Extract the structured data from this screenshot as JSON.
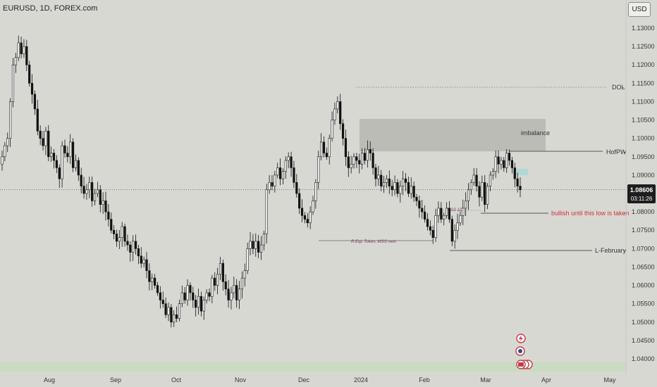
{
  "header": {
    "symbol_line": "EURUSD, 1D, FOREX.com",
    "currency": "USD"
  },
  "price_label": {
    "price": "1.08606",
    "countdown": "03:11:26"
  },
  "chart_data": {
    "type": "candlestick",
    "title": "EURUSD, 1D, FOREX.com",
    "y_ticks": [
      "1.13000",
      "1.12500",
      "1.12000",
      "1.11500",
      "1.11000",
      "1.10500",
      "1.10000",
      "1.09500",
      "1.09000",
      "1.08500",
      "1.08000",
      "1.07500",
      "1.07000",
      "1.06500",
      "1.06000",
      "1.05500",
      "1.05000",
      "1.04500",
      "1.04000"
    ],
    "ylim": [
      1.0375,
      1.1345
    ],
    "x_ticks": [
      "Aug",
      "Sep",
      "Oct",
      "Nov",
      "Dec",
      "2024",
      "Feb",
      "Mar",
      "Apr",
      "May"
    ],
    "current_price": 1.08606,
    "closes": [
      1.095,
      1.098,
      1.1,
      1.11,
      1.12,
      1.122,
      1.126,
      1.123,
      1.125,
      1.12,
      1.115,
      1.112,
      1.108,
      1.102,
      1.1,
      1.098,
      1.102,
      1.095,
      1.096,
      1.094,
      1.092,
      1.089,
      1.098,
      1.096,
      1.095,
      1.099,
      1.092,
      1.094,
      1.09,
      1.087,
      1.085,
      1.086,
      1.088,
      1.083,
      1.085,
      1.086,
      1.082,
      1.083,
      1.08,
      1.078,
      1.075,
      1.074,
      1.072,
      1.073,
      1.076,
      1.072,
      1.071,
      1.069,
      1.072,
      1.07,
      1.068,
      1.066,
      1.067,
      1.064,
      1.061,
      1.062,
      1.06,
      1.058,
      1.056,
      1.055,
      1.052,
      1.054,
      1.05,
      1.052,
      1.051,
      1.055,
      1.058,
      1.056,
      1.06,
      1.058,
      1.056,
      1.054,
      1.057,
      1.053,
      1.056,
      1.058,
      1.057,
      1.062,
      1.06,
      1.063,
      1.066,
      1.061,
      1.059,
      1.056,
      1.058,
      1.06,
      1.056,
      1.059,
      1.062,
      1.064,
      1.07,
      1.072,
      1.07,
      1.072,
      1.069,
      1.071,
      1.074,
      1.086,
      1.088,
      1.087,
      1.09,
      1.092,
      1.089,
      1.091,
      1.094,
      1.095,
      1.092,
      1.088,
      1.085,
      1.081,
      1.079,
      1.078,
      1.077,
      1.08,
      1.083,
      1.088,
      1.095,
      1.099,
      1.096,
      1.095,
      1.1,
      1.105,
      1.108,
      1.11,
      1.104,
      1.1,
      1.095,
      1.092,
      1.093,
      1.095,
      1.094,
      1.093,
      1.096,
      1.094,
      1.097,
      1.096,
      1.092,
      1.089,
      1.09,
      1.087,
      1.088,
      1.089,
      1.087,
      1.086,
      1.088,
      1.085,
      1.087,
      1.089,
      1.088,
      1.085,
      1.087,
      1.084,
      1.083,
      1.081,
      1.08,
      1.078,
      1.076,
      1.075,
      1.073,
      1.079,
      1.081,
      1.078,
      1.079,
      1.081,
      1.078,
      1.072,
      1.075,
      1.077,
      1.079,
      1.081,
      1.083,
      1.086,
      1.088,
      1.09,
      1.087,
      1.084,
      1.088,
      1.082,
      1.087,
      1.09,
      1.091,
      1.095,
      1.093,
      1.094,
      1.092,
      1.096,
      1.094,
      1.092,
      1.089,
      1.087,
      1.086
    ],
    "rectangles": [
      {
        "x0": 1.0965,
        "x1": 1.1055,
        "label": "imbalance"
      }
    ],
    "annotations": [
      {
        "text": "DOL",
        "price": 1.1137
      },
      {
        "text": "HofPW",
        "price": 1.0965
      },
      {
        "text": "bullish until this low is taken",
        "price": 1.0798
      },
      {
        "text": "L-February",
        "price": 1.0695
      },
      {
        "text": "R.EqL Token, MSS next",
        "price": 1.0723
      },
      {
        "text": "MSS 1D",
        "price": 1.0805
      }
    ]
  }
}
